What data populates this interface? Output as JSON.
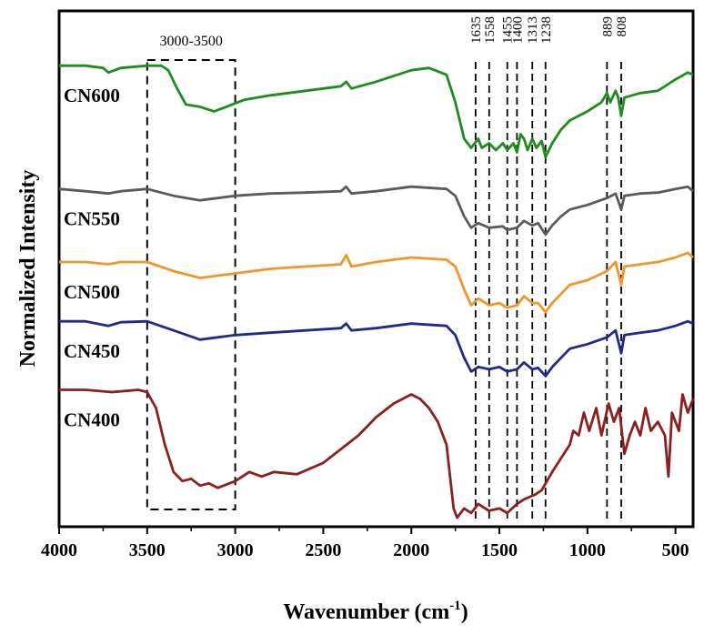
{
  "chart_data": {
    "type": "line",
    "title": "",
    "xlabel": "Wavenumber (cm",
    "xlabel_sup": "-1",
    "xlabel_close": ")",
    "ylabel": "Normalized Intensity",
    "xlim": [
      4000,
      400
    ],
    "x_reversed": true,
    "xticks": [
      4000,
      3500,
      3000,
      2500,
      2000,
      1500,
      1000,
      500
    ],
    "xtick_labels": [
      "4000",
      "3500",
      "3000",
      "2500",
      "2000",
      "1500",
      "1000",
      "500"
    ],
    "y_ticks_shown": false,
    "grid": false,
    "legend": "none",
    "highlight_box": {
      "label": "3000-3500",
      "x_from": 3500,
      "x_to": 3000
    },
    "peak_markers": [
      {
        "label": "1635",
        "x": 1635
      },
      {
        "label": "1558",
        "x": 1558
      },
      {
        "label": "1455",
        "x": 1455
      },
      {
        "label": "1400",
        "x": 1400
      },
      {
        "label": "1313",
        "x": 1313
      },
      {
        "label": "1238",
        "x": 1238
      },
      {
        "label": "889",
        "x": 889
      },
      {
        "label": "808",
        "x": 808
      }
    ],
    "series": [
      {
        "name": "CN600",
        "color": "#1f8c1f",
        "points": [
          [
            4000,
            0.93
          ],
          [
            3850,
            0.93
          ],
          [
            3750,
            0.925
          ],
          [
            3720,
            0.915
          ],
          [
            3650,
            0.925
          ],
          [
            3500,
            0.93
          ],
          [
            3420,
            0.93
          ],
          [
            3380,
            0.92
          ],
          [
            3330,
            0.88
          ],
          [
            3280,
            0.845
          ],
          [
            3200,
            0.84
          ],
          [
            3120,
            0.83
          ],
          [
            3050,
            0.84
          ],
          [
            2950,
            0.855
          ],
          [
            2800,
            0.865
          ],
          [
            2600,
            0.875
          ],
          [
            2400,
            0.885
          ],
          [
            2370,
            0.895
          ],
          [
            2340,
            0.88
          ],
          [
            2200,
            0.895
          ],
          [
            2000,
            0.92
          ],
          [
            1900,
            0.925
          ],
          [
            1800,
            0.91
          ],
          [
            1750,
            0.85
          ],
          [
            1700,
            0.77
          ],
          [
            1660,
            0.75
          ],
          [
            1620,
            0.77
          ],
          [
            1600,
            0.75
          ],
          [
            1558,
            0.76
          ],
          [
            1520,
            0.745
          ],
          [
            1480,
            0.76
          ],
          [
            1455,
            0.745
          ],
          [
            1420,
            0.76
          ],
          [
            1400,
            0.74
          ],
          [
            1380,
            0.78
          ],
          [
            1360,
            0.77
          ],
          [
            1340,
            0.745
          ],
          [
            1313,
            0.77
          ],
          [
            1290,
            0.75
          ],
          [
            1260,
            0.765
          ],
          [
            1238,
            0.73
          ],
          [
            1200,
            0.76
          ],
          [
            1150,
            0.79
          ],
          [
            1100,
            0.81
          ],
          [
            1000,
            0.83
          ],
          [
            920,
            0.85
          ],
          [
            889,
            0.87
          ],
          [
            870,
            0.85
          ],
          [
            840,
            0.875
          ],
          [
            825,
            0.86
          ],
          [
            808,
            0.82
          ],
          [
            790,
            0.86
          ],
          [
            700,
            0.87
          ],
          [
            600,
            0.875
          ],
          [
            500,
            0.9
          ],
          [
            430,
            0.915
          ],
          [
            400,
            0.91
          ]
        ]
      },
      {
        "name": "CN550",
        "color": "#5a5a5a",
        "points": [
          [
            4000,
            0.66
          ],
          [
            3850,
            0.655
          ],
          [
            3720,
            0.65
          ],
          [
            3650,
            0.655
          ],
          [
            3500,
            0.66
          ],
          [
            3350,
            0.645
          ],
          [
            3200,
            0.635
          ],
          [
            3100,
            0.64
          ],
          [
            3000,
            0.645
          ],
          [
            2800,
            0.65
          ],
          [
            2600,
            0.652
          ],
          [
            2400,
            0.655
          ],
          [
            2370,
            0.665
          ],
          [
            2340,
            0.65
          ],
          [
            2200,
            0.655
          ],
          [
            2000,
            0.665
          ],
          [
            1800,
            0.66
          ],
          [
            1750,
            0.645
          ],
          [
            1700,
            0.6
          ],
          [
            1660,
            0.575
          ],
          [
            1620,
            0.585
          ],
          [
            1558,
            0.575
          ],
          [
            1480,
            0.578
          ],
          [
            1455,
            0.57
          ],
          [
            1400,
            0.575
          ],
          [
            1360,
            0.59
          ],
          [
            1313,
            0.58
          ],
          [
            1280,
            0.585
          ],
          [
            1238,
            0.56
          ],
          [
            1200,
            0.58
          ],
          [
            1150,
            0.6
          ],
          [
            1100,
            0.615
          ],
          [
            1000,
            0.625
          ],
          [
            889,
            0.64
          ],
          [
            840,
            0.65
          ],
          [
            808,
            0.615
          ],
          [
            790,
            0.645
          ],
          [
            700,
            0.65
          ],
          [
            600,
            0.652
          ],
          [
            500,
            0.66
          ],
          [
            430,
            0.665
          ],
          [
            400,
            0.655
          ]
        ]
      },
      {
        "name": "CN500",
        "color": "#f0962a",
        "points": [
          [
            4000,
            0.5
          ],
          [
            3850,
            0.5
          ],
          [
            3720,
            0.495
          ],
          [
            3650,
            0.5
          ],
          [
            3500,
            0.5
          ],
          [
            3350,
            0.48
          ],
          [
            3200,
            0.465
          ],
          [
            3100,
            0.47
          ],
          [
            3000,
            0.475
          ],
          [
            2800,
            0.485
          ],
          [
            2600,
            0.49
          ],
          [
            2400,
            0.495
          ],
          [
            2370,
            0.515
          ],
          [
            2340,
            0.49
          ],
          [
            2200,
            0.5
          ],
          [
            2000,
            0.51
          ],
          [
            1800,
            0.505
          ],
          [
            1750,
            0.49
          ],
          [
            1700,
            0.44
          ],
          [
            1660,
            0.405
          ],
          [
            1620,
            0.42
          ],
          [
            1558,
            0.405
          ],
          [
            1500,
            0.41
          ],
          [
            1455,
            0.4
          ],
          [
            1400,
            0.405
          ],
          [
            1360,
            0.425
          ],
          [
            1313,
            0.41
          ],
          [
            1280,
            0.41
          ],
          [
            1238,
            0.39
          ],
          [
            1200,
            0.41
          ],
          [
            1150,
            0.43
          ],
          [
            1100,
            0.45
          ],
          [
            1000,
            0.46
          ],
          [
            889,
            0.48
          ],
          [
            840,
            0.5
          ],
          [
            808,
            0.45
          ],
          [
            790,
            0.49
          ],
          [
            700,
            0.495
          ],
          [
            600,
            0.5
          ],
          [
            500,
            0.51
          ],
          [
            430,
            0.52
          ],
          [
            400,
            0.51
          ]
        ]
      },
      {
        "name": "CN450",
        "color": "#1f2a8c",
        "points": [
          [
            4000,
            0.37
          ],
          [
            3850,
            0.37
          ],
          [
            3720,
            0.36
          ],
          [
            3650,
            0.368
          ],
          [
            3500,
            0.37
          ],
          [
            3350,
            0.35
          ],
          [
            3200,
            0.33
          ],
          [
            3100,
            0.335
          ],
          [
            3000,
            0.34
          ],
          [
            2800,
            0.345
          ],
          [
            2600,
            0.35
          ],
          [
            2400,
            0.355
          ],
          [
            2370,
            0.365
          ],
          [
            2340,
            0.35
          ],
          [
            2200,
            0.355
          ],
          [
            2000,
            0.365
          ],
          [
            1800,
            0.36
          ],
          [
            1750,
            0.34
          ],
          [
            1700,
            0.29
          ],
          [
            1660,
            0.26
          ],
          [
            1620,
            0.27
          ],
          [
            1558,
            0.265
          ],
          [
            1500,
            0.27
          ],
          [
            1455,
            0.26
          ],
          [
            1400,
            0.265
          ],
          [
            1360,
            0.28
          ],
          [
            1313,
            0.265
          ],
          [
            1280,
            0.268
          ],
          [
            1238,
            0.25
          ],
          [
            1200,
            0.27
          ],
          [
            1150,
            0.29
          ],
          [
            1100,
            0.31
          ],
          [
            1000,
            0.32
          ],
          [
            889,
            0.335
          ],
          [
            840,
            0.35
          ],
          [
            808,
            0.3
          ],
          [
            790,
            0.34
          ],
          [
            700,
            0.345
          ],
          [
            600,
            0.35
          ],
          [
            500,
            0.36
          ],
          [
            430,
            0.37
          ],
          [
            400,
            0.365
          ]
        ]
      },
      {
        "name": "CN400",
        "color": "#8c1f1f",
        "points": [
          [
            4000,
            0.22
          ],
          [
            3850,
            0.22
          ],
          [
            3700,
            0.215
          ],
          [
            3550,
            0.22
          ],
          [
            3500,
            0.215
          ],
          [
            3450,
            0.18
          ],
          [
            3400,
            0.1
          ],
          [
            3350,
            0.04
          ],
          [
            3300,
            0.02
          ],
          [
            3250,
            0.025
          ],
          [
            3200,
            0.01
          ],
          [
            3150,
            0.015
          ],
          [
            3100,
            0.005
          ],
          [
            3000,
            0.02
          ],
          [
            2920,
            0.04
          ],
          [
            2850,
            0.03
          ],
          [
            2780,
            0.04
          ],
          [
            2650,
            0.035
          ],
          [
            2500,
            0.06
          ],
          [
            2400,
            0.09
          ],
          [
            2300,
            0.12
          ],
          [
            2200,
            0.16
          ],
          [
            2100,
            0.19
          ],
          [
            2000,
            0.21
          ],
          [
            1950,
            0.2
          ],
          [
            1900,
            0.18
          ],
          [
            1850,
            0.15
          ],
          [
            1800,
            0.1
          ],
          [
            1760,
            -0.04
          ],
          [
            1740,
            -0.06
          ],
          [
            1700,
            -0.04
          ],
          [
            1660,
            -0.05
          ],
          [
            1620,
            -0.03
          ],
          [
            1560,
            -0.045
          ],
          [
            1500,
            -0.04
          ],
          [
            1455,
            -0.05
          ],
          [
            1400,
            -0.03
          ],
          [
            1360,
            -0.02
          ],
          [
            1300,
            -0.01
          ],
          [
            1260,
            0.0
          ],
          [
            1200,
            0.04
          ],
          [
            1150,
            0.07
          ],
          [
            1100,
            0.1
          ],
          [
            1080,
            0.13
          ],
          [
            1050,
            0.12
          ],
          [
            1020,
            0.17
          ],
          [
            990,
            0.13
          ],
          [
            950,
            0.18
          ],
          [
            920,
            0.12
          ],
          [
            880,
            0.19
          ],
          [
            850,
            0.15
          ],
          [
            820,
            0.18
          ],
          [
            790,
            0.08
          ],
          [
            760,
            0.12
          ],
          [
            730,
            0.15
          ],
          [
            700,
            0.12
          ],
          [
            670,
            0.18
          ],
          [
            640,
            0.13
          ],
          [
            600,
            0.15
          ],
          [
            560,
            0.12
          ],
          [
            540,
            0.03
          ],
          [
            520,
            0.17
          ],
          [
            480,
            0.13
          ],
          [
            460,
            0.21
          ],
          [
            430,
            0.17
          ],
          [
            400,
            0.2
          ]
        ]
      }
    ],
    "ylim": [
      -0.08,
      1.05
    ]
  }
}
